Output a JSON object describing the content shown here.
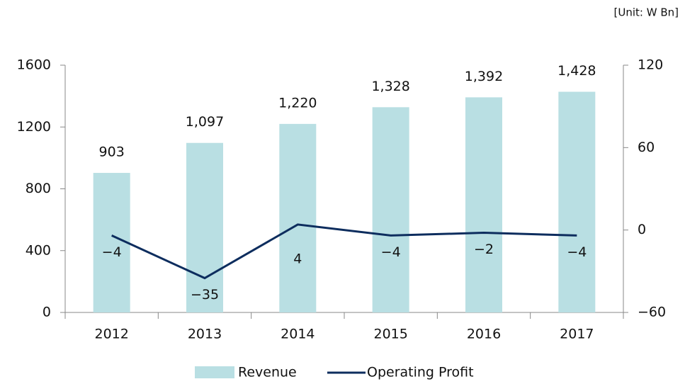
{
  "chart_data": {
    "type": "bar-line",
    "unit_note": "[Unit: W Bn]",
    "categories": [
      "2012",
      "2013",
      "2014",
      "2015",
      "2016",
      "2017"
    ],
    "series": [
      {
        "name": "Revenue",
        "type": "bar",
        "color": "#b9dfe3",
        "axis": "y",
        "values": [
          903,
          1097,
          1220,
          1328,
          1392,
          1428
        ],
        "value_labels": [
          "903",
          "1,097",
          "1,220",
          "1,328",
          "1,392",
          "1,428"
        ]
      },
      {
        "name": "Operating Profit",
        "type": "line",
        "color": "#0d2d5e",
        "axis": "y2",
        "values": [
          -4,
          -35,
          4,
          -4,
          -2,
          -4
        ],
        "value_labels": [
          "−4",
          "−35",
          "4",
          "−4",
          "−2",
          "−4"
        ]
      }
    ],
    "ylim": [
      0,
      1600
    ],
    "yticks": [
      0,
      400,
      800,
      1200,
      1600
    ],
    "y2lim": [
      -60,
      120
    ],
    "y2ticks": [
      {
        "value": -60,
        "label": "−60"
      },
      0,
      60,
      120
    ],
    "legend": "bottom"
  }
}
